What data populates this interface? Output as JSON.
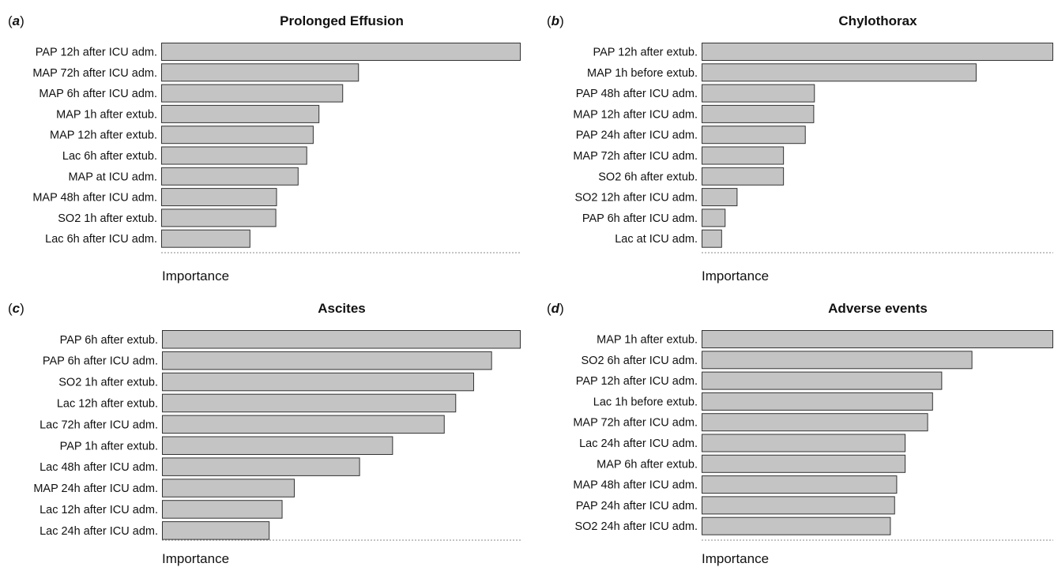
{
  "chart_data": [
    {
      "type": "bar",
      "orientation": "horizontal",
      "panel_letter": "a",
      "title": "Prolonged Effusion",
      "xlabel": "Importance",
      "categories": [
        "PAP 12h after ICU adm.",
        "MAP 72h after ICU adm.",
        "MAP 6h after ICU adm.",
        "MAP 1h after extub.",
        "MAP 12h after extub.",
        "Lac 6h after extub.",
        "MAP at ICU adm.",
        "MAP 48h after ICU adm.",
        "SO2 1h after extub.",
        "Lac 6h after ICU adm."
      ],
      "values": [
        100,
        55,
        50.6,
        44,
        42.4,
        40.6,
        38.2,
        32.2,
        32,
        24.8
      ],
      "xlim": [
        0,
        100
      ]
    },
    {
      "type": "bar",
      "orientation": "horizontal",
      "panel_letter": "b",
      "title": "Chylothorax",
      "xlabel": "Importance",
      "categories": [
        "PAP 12h after extub.",
        "MAP 1h before extub.",
        "PAP 48h after ICU adm.",
        "MAP 12h after ICU adm.",
        "PAP 24h after ICU adm.",
        "MAP 72h after ICU adm.",
        "SO2 6h after extub.",
        "SO2 12h after ICU adm.",
        "PAP 6h after ICU adm.",
        "Lac at ICU adm."
      ],
      "values": [
        100,
        78.2,
        32.2,
        32,
        29.6,
        23.4,
        23.4,
        10.2,
        6.8,
        5.8
      ],
      "xlim": [
        0,
        100
      ]
    },
    {
      "type": "bar",
      "orientation": "horizontal",
      "panel_letter": "c",
      "title": "Ascites",
      "xlabel": "Importance",
      "categories": [
        "PAP 6h after extub.",
        "PAP 6h after ICU adm.",
        "SO2 1h after extub.",
        "Lac 12h after extub.",
        "Lac 72h after ICU adm.",
        "PAP 1h after extub.",
        "Lac 48h after ICU adm.",
        "MAP 24h after ICU adm.",
        "Lac 12h after ICU adm.",
        "Lac 24h after ICU adm."
      ],
      "values": [
        100,
        92,
        87,
        82,
        78.8,
        64.4,
        55.2,
        37,
        33.6,
        30
      ],
      "xlim": [
        0,
        100
      ]
    },
    {
      "type": "bar",
      "orientation": "horizontal",
      "panel_letter": "d",
      "title": "Adverse events",
      "xlabel": "Importance",
      "categories": [
        "MAP 1h after extub.",
        "SO2 6h after ICU adm.",
        "PAP 12h after ICU adm.",
        "Lac 1h before extub.",
        "MAP 72h after ICU adm.",
        "Lac 24h after ICU adm.",
        "MAP 6h after extub.",
        "MAP 48h after ICU adm.",
        "PAP 24h after ICU adm.",
        "SO2 24h after ICU adm."
      ],
      "values": [
        100,
        77,
        68.4,
        65.8,
        64.4,
        58,
        58,
        55.6,
        55,
        53.8
      ],
      "xlim": [
        0,
        100
      ]
    }
  ]
}
